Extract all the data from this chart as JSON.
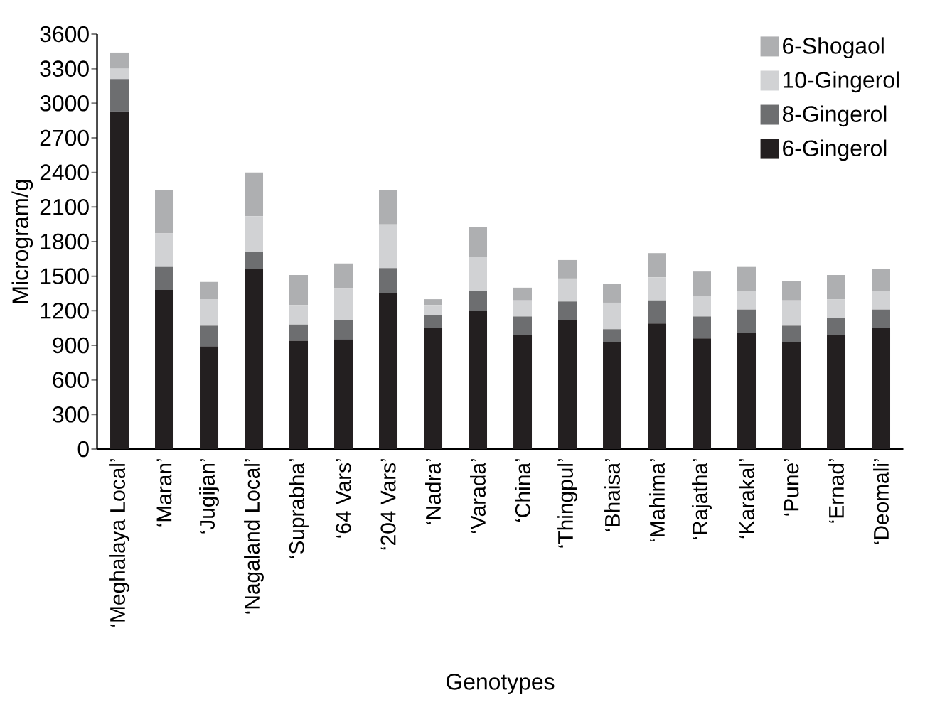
{
  "chart_data": {
    "type": "bar",
    "stacked": true,
    "xlabel": "Genotypes",
    "ylabel": "Microgram/g",
    "categories": [
      "‘Meghalaya Local’",
      "‘Maran’",
      "‘Jugijan’",
      "‘Nagaland Local’",
      "‘Suprabha’",
      "‘64 Vars’",
      "‘204 Vars’",
      "‘Nadra’",
      "‘Varada’",
      "‘China’",
      "‘Thingpul’",
      "‘Bhaisa’",
      "‘Mahima’",
      "‘Rajatha’",
      "‘Karakal’",
      "‘Pune’",
      "‘Ernad’",
      "‘Deomali’"
    ],
    "series": [
      {
        "name": "6-Gingerol",
        "color": "#231f20",
        "values": [
          2930,
          1380,
          890,
          1560,
          940,
          950,
          1350,
          1050,
          1200,
          990,
          1120,
          930,
          1090,
          960,
          1010,
          930,
          990,
          1050
        ]
      },
      {
        "name": "8-Gingerol",
        "color": "#6d6e70",
        "values": [
          280,
          200,
          180,
          150,
          140,
          170,
          220,
          110,
          170,
          160,
          160,
          110,
          200,
          190,
          200,
          140,
          150,
          160
        ]
      },
      {
        "name": "10-Gingerol",
        "color": "#d1d2d4",
        "values": [
          90,
          290,
          230,
          310,
          170,
          270,
          380,
          90,
          300,
          140,
          200,
          230,
          200,
          180,
          160,
          220,
          160,
          160
        ]
      },
      {
        "name": "6-Shogaol",
        "color": "#aeafb1",
        "values": [
          140,
          380,
          150,
          380,
          260,
          220,
          300,
          50,
          260,
          110,
          160,
          160,
          210,
          210,
          210,
          170,
          210,
          190
        ]
      }
    ],
    "ylim": [
      0,
      3600
    ],
    "yticks": [
      0,
      300,
      600,
      900,
      1200,
      1500,
      1800,
      2100,
      2400,
      2700,
      3000,
      3300,
      3600
    ],
    "legend": "top right",
    "grid": false
  }
}
